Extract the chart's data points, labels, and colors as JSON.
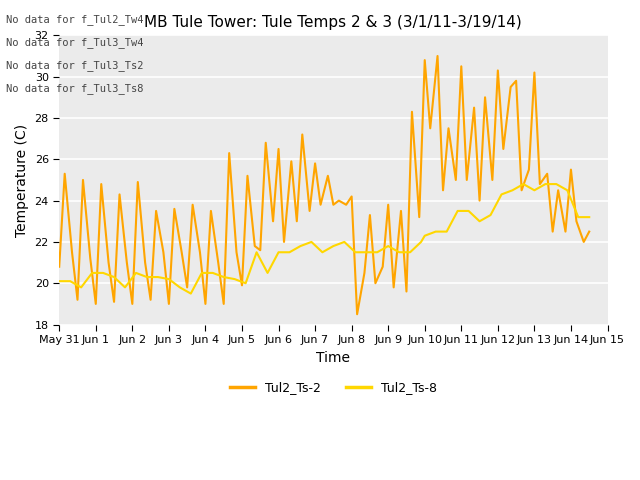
{
  "title": "MB Tule Tower: Tule Temps 2 & 3 (3/1/11-3/19/14)",
  "xlabel": "Time",
  "ylabel": "Temperature (C)",
  "ylim": [
    18,
    32
  ],
  "yticks": [
    18,
    20,
    22,
    24,
    26,
    28,
    30,
    32
  ],
  "background_color": "#ffffff",
  "plot_bg_color": "#ebebeb",
  "grid_color": "#ffffff",
  "no_data_texts": [
    "No data for f_Tul2_Tw4",
    "No data for f_Tul3_Tw4",
    "No data for f_Tul3_Ts2",
    "No data for f_Tul3_Ts8"
  ],
  "legend_labels": [
    "Tul2_Ts-2",
    "Tul2_Ts-8"
  ],
  "line1_color": "#FFA500",
  "line2_color": "#FFD700",
  "xtick_positions": [
    0,
    1,
    2,
    3,
    4,
    5,
    6,
    7,
    8,
    9,
    10,
    11,
    12,
    13,
    14,
    15
  ],
  "xtick_labels": [
    "May 31",
    "Jun 1",
    "Jun 2",
    "Jun 3",
    "Jun 4",
    "Jun 5",
    "Jun 6",
    "Jun 7",
    "Jun 8",
    "Jun 9",
    "Jun 10",
    "Jun 11",
    "Jun 12",
    "Jun 13",
    "Jun 14",
    "Jun 15"
  ],
  "ts2_x": [
    0.0,
    0.15,
    0.35,
    0.5,
    0.65,
    0.85,
    1.0,
    1.15,
    1.35,
    1.5,
    1.65,
    1.85,
    2.0,
    2.15,
    2.35,
    2.5,
    2.65,
    2.85,
    3.0,
    3.15,
    3.35,
    3.5,
    3.65,
    3.85,
    4.0,
    4.15,
    4.35,
    4.5,
    4.65,
    4.85,
    5.0,
    5.15,
    5.35,
    5.5,
    5.65,
    5.85,
    6.0,
    6.15,
    6.35,
    6.5,
    6.65,
    6.85,
    7.0,
    7.15,
    7.35,
    7.5,
    7.65,
    7.85,
    8.0,
    8.15,
    8.35,
    8.5,
    8.65,
    8.85,
    9.0,
    9.15,
    9.35,
    9.5,
    9.65,
    9.85,
    10.0,
    10.15,
    10.35,
    10.5,
    10.65,
    10.85,
    11.0,
    11.15,
    11.35,
    11.5,
    11.65,
    11.85,
    12.0,
    12.15,
    12.35,
    12.5,
    12.65,
    12.85,
    13.0,
    13.15,
    13.35,
    13.5,
    13.65,
    13.85,
    14.0,
    14.15,
    14.35,
    14.5
  ],
  "ts2_y": [
    20.8,
    25.3,
    21.5,
    19.2,
    25.0,
    21.2,
    19.0,
    24.8,
    21.0,
    19.1,
    24.3,
    21.0,
    19.0,
    24.9,
    21.0,
    19.2,
    23.5,
    21.5,
    19.0,
    23.6,
    21.5,
    19.8,
    23.8,
    21.5,
    19.0,
    23.5,
    21.0,
    19.0,
    26.3,
    21.5,
    19.9,
    25.2,
    21.8,
    21.6,
    26.8,
    23.0,
    26.5,
    22.0,
    25.9,
    23.0,
    27.2,
    23.5,
    25.8,
    23.8,
    25.2,
    23.8,
    24.0,
    23.8,
    24.2,
    18.5,
    20.5,
    23.3,
    20.0,
    20.8,
    23.8,
    19.8,
    23.5,
    19.6,
    28.3,
    23.2,
    30.8,
    27.5,
    31.0,
    24.5,
    27.5,
    25.0,
    30.5,
    25.0,
    28.5,
    24.0,
    29.0,
    25.0,
    30.3,
    26.5,
    29.5,
    29.8,
    24.5,
    25.5,
    30.2,
    24.8,
    25.3,
    22.5,
    24.5,
    22.5,
    25.5,
    23.0,
    22.0,
    22.5
  ],
  "ts8_x": [
    0.0,
    0.3,
    0.6,
    0.9,
    1.2,
    1.5,
    1.8,
    2.1,
    2.4,
    2.7,
    3.0,
    3.3,
    3.6,
    3.9,
    4.2,
    4.5,
    4.8,
    5.1,
    5.4,
    5.7,
    6.0,
    6.3,
    6.6,
    6.9,
    7.2,
    7.5,
    7.8,
    8.1,
    8.4,
    8.7,
    9.0,
    9.3,
    9.6,
    9.9,
    10.0,
    10.3,
    10.6,
    10.9,
    11.2,
    11.5,
    11.8,
    12.1,
    12.4,
    12.7,
    13.0,
    13.3,
    13.6,
    13.9,
    14.2,
    14.5
  ],
  "ts8_y": [
    20.1,
    20.1,
    19.8,
    20.5,
    20.5,
    20.3,
    19.8,
    20.5,
    20.3,
    20.3,
    20.2,
    19.8,
    19.5,
    20.5,
    20.5,
    20.3,
    20.2,
    20.0,
    21.5,
    20.5,
    21.5,
    21.5,
    21.8,
    22.0,
    21.5,
    21.8,
    22.0,
    21.5,
    21.5,
    21.5,
    21.8,
    21.5,
    21.5,
    22.0,
    22.3,
    22.5,
    22.5,
    23.5,
    23.5,
    23.0,
    23.3,
    24.3,
    24.5,
    24.8,
    24.5,
    24.8,
    24.8,
    24.5,
    23.2,
    23.2
  ]
}
